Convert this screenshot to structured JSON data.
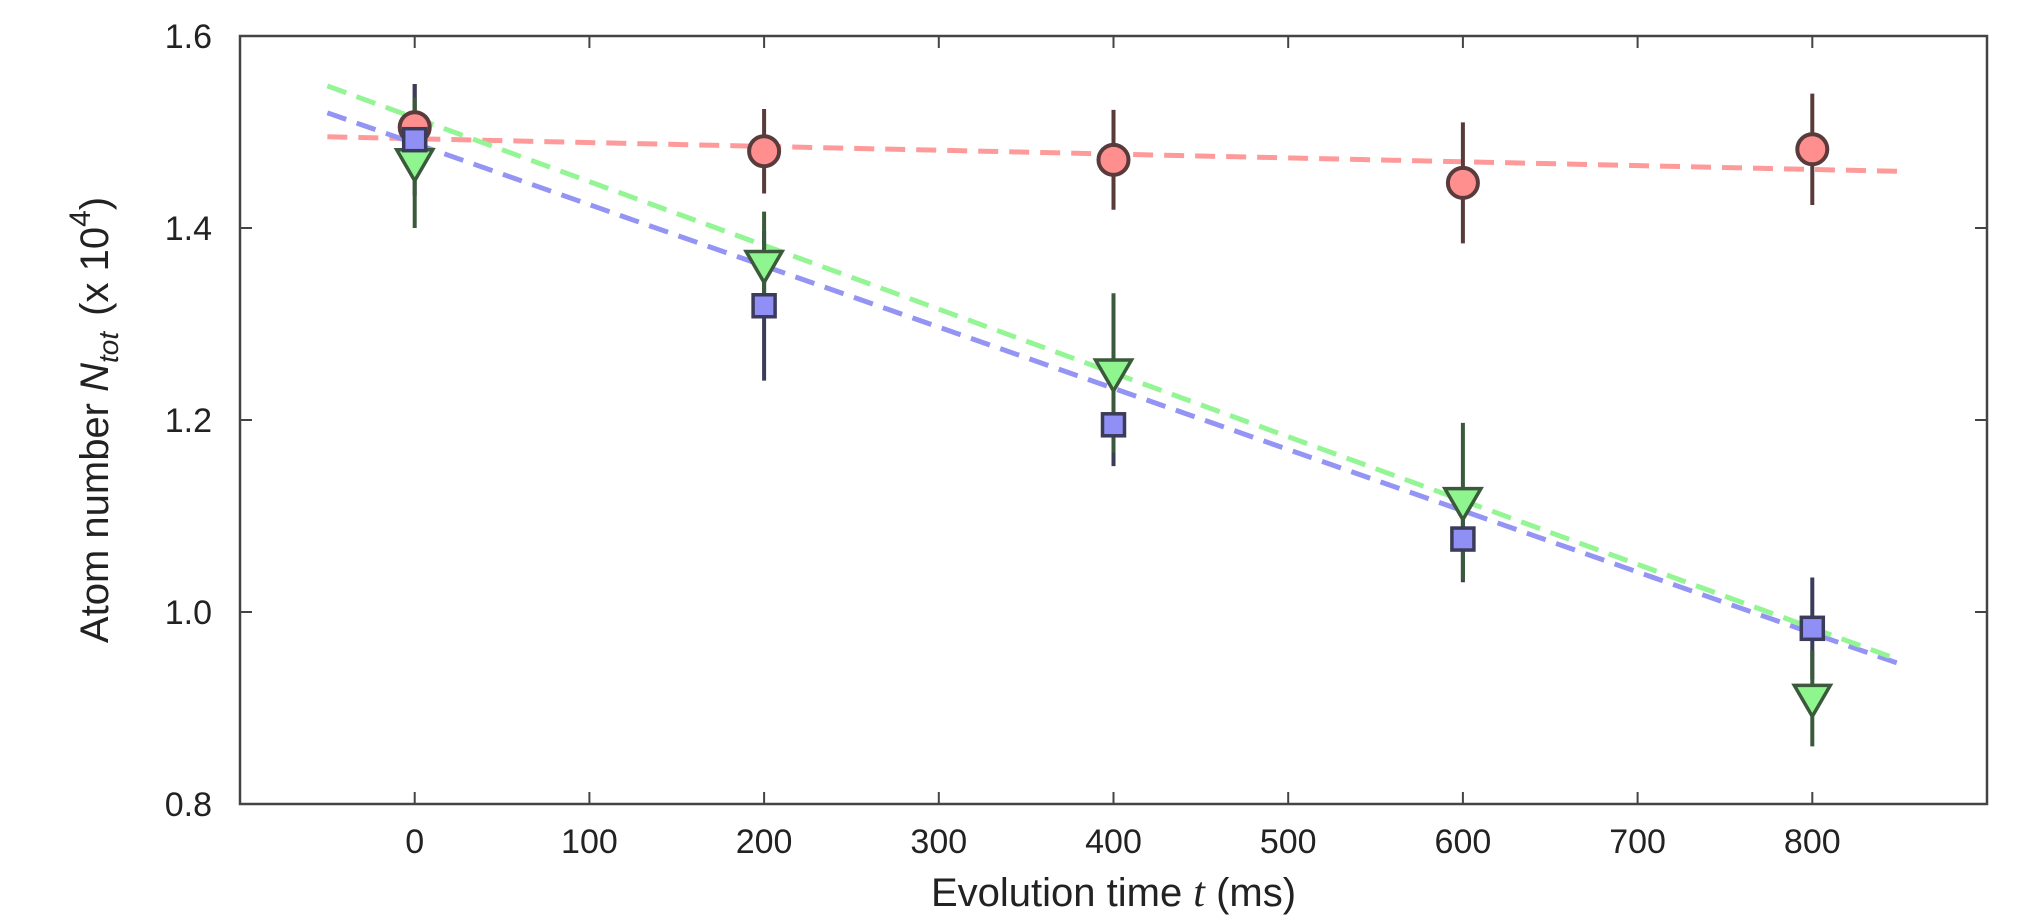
{
  "chart_data": {
    "type": "scatter",
    "title": "",
    "xlabel": {
      "prefix": "Evolution time ",
      "variable": "t",
      "suffix": " (ms)"
    },
    "ylabel": {
      "prefix": "Atom number ",
      "variable": "N",
      "subscript": "tot",
      "unit_prefix": "(x 10",
      "exponent": "4",
      "unit_suffix": ")"
    },
    "xlim": [
      -100,
      900
    ],
    "ylim": [
      0.8,
      1.6
    ],
    "x_ticks": [
      0,
      100,
      200,
      300,
      400,
      500,
      600,
      700,
      800
    ],
    "x_tick_labels": [
      "0",
      "100",
      "200",
      "300",
      "400",
      "500",
      "600",
      "700",
      "800"
    ],
    "y_ticks": [
      0.8,
      1.0,
      1.2,
      1.4,
      1.6
    ],
    "y_tick_labels": [
      "0.8",
      "1.0",
      "1.2",
      "1.4",
      "1.6"
    ],
    "grid": false,
    "series": [
      {
        "name": "circles",
        "marker": "circle",
        "face_color": "#ff8f8f",
        "edge_color": "#5a3b3b",
        "x": [
          0,
          200,
          400,
          600,
          800
        ],
        "y": [
          1.505,
          1.48,
          1.471,
          1.447,
          1.482
        ],
        "yerr": [
          0.045,
          0.044,
          0.052,
          0.063,
          0.058
        ],
        "fit": {
          "x_range": [
            -50,
            850
          ],
          "y_start": 1.495,
          "y_end": 1.459,
          "color": "#ff9a9a"
        }
      },
      {
        "name": "squares",
        "marker": "square",
        "face_color": "#8f8ff5",
        "edge_color": "#3b3b5a",
        "x": [
          0,
          200,
          400,
          600,
          800
        ],
        "y": [
          1.492,
          1.319,
          1.195,
          1.076,
          0.983
        ],
        "yerr": [
          0.058,
          0.078,
          0.043,
          0.045,
          0.053
        ],
        "fit": {
          "x_range": [
            -50,
            850
          ],
          "y_start": 1.52,
          "y_end": 0.946,
          "color": "#9494f5"
        }
      },
      {
        "name": "triangles",
        "marker": "triangle-down",
        "face_color": "#8ff58f",
        "edge_color": "#3b5a3b",
        "x": [
          0,
          200,
          400,
          600,
          800
        ],
        "y": [
          1.468,
          1.362,
          1.249,
          1.115,
          0.91
        ],
        "yerr": [
          0.068,
          0.055,
          0.083,
          0.082,
          0.05
        ],
        "fit": {
          "x_range": [
            -50,
            850
          ],
          "y_start": 1.548,
          "y_end": 0.95,
          "color": "#94f594"
        }
      }
    ]
  }
}
